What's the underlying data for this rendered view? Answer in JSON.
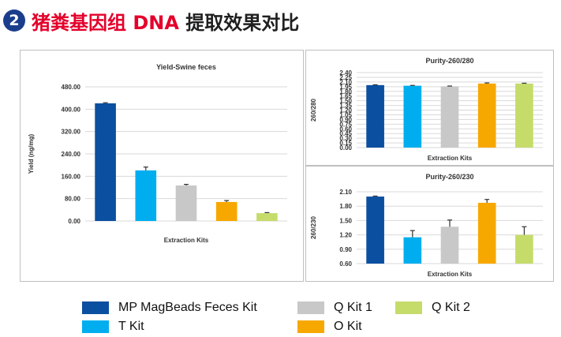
{
  "header": {
    "number": "2",
    "title_red": "猪粪基因组 DNA",
    "title_dark": "提取效果对比"
  },
  "colors": {
    "mp": "#0b4fa0",
    "t": "#00aeef",
    "q1": "#c8c8c8",
    "o": "#f7a800",
    "q2": "#c5dc6b",
    "err": "#333333"
  },
  "legend": [
    {
      "label": "MP MagBeads Feces  Kit",
      "color": "#0b4fa0"
    },
    {
      "label": "T Kit",
      "color": "#00aeef"
    },
    {
      "label": "Q Kit 1",
      "color": "#c8c8c8"
    },
    {
      "label": "O Kit",
      "color": "#f7a800"
    },
    {
      "label": "Q Kit 2",
      "color": "#c5dc6b"
    }
  ],
  "chart_data": [
    {
      "type": "bar",
      "title": "Yield-Swine feces",
      "xlabel": "Extraction Kits",
      "ylabel": "Yield (ng/mg)",
      "ylim": [
        0,
        480
      ],
      "yticks": [
        0,
        80,
        160,
        240,
        320,
        400,
        480
      ],
      "ytick_labels": [
        "0.00",
        "80.00",
        "160.00",
        "240.00",
        "320.00",
        "400.00",
        "480.00"
      ],
      "categories": [
        "MP MagBeads Feces Kit",
        "T Kit",
        "Q Kit 1",
        "O Kit",
        "Q Kit 2"
      ],
      "values": [
        421,
        181,
        127,
        68,
        28
      ],
      "errors": [
        2,
        12,
        4,
        5,
        2
      ]
    },
    {
      "type": "bar",
      "title": "Purity-260/280",
      "xlabel": "Extraction Kits",
      "ylabel": "260/280",
      "ylim": [
        0,
        2.4
      ],
      "yticks": [
        0,
        0.15,
        0.3,
        0.45,
        0.6,
        0.75,
        0.9,
        1.05,
        1.2,
        1.35,
        1.5,
        1.65,
        1.8,
        1.95,
        2.1,
        2.25,
        2.4
      ],
      "ytick_labels": [
        "0.00",
        "0.15",
        "0.30",
        "0.45",
        "0.60",
        "0.75",
        "0.90",
        "1.05",
        "1.20",
        "1.35",
        "1.50",
        "1.65",
        "1.80",
        "1.95",
        "2.10",
        "2.25",
        "2.40"
      ],
      "categories": [
        "MP MagBeads Feces Kit",
        "T Kit",
        "Q Kit 1",
        "O Kit",
        "Q Kit 2"
      ],
      "values": [
        2.0,
        1.98,
        1.96,
        2.05,
        2.05
      ],
      "errors": [
        0.01,
        0.01,
        0.01,
        0.02,
        0.01
      ]
    },
    {
      "type": "bar",
      "title": "Purity-260/230",
      "xlabel": "Extraction Kits",
      "ylabel": "260/230",
      "ylim": [
        0.6,
        2.1
      ],
      "yticks": [
        0.6,
        0.9,
        1.2,
        1.5,
        1.8,
        2.1
      ],
      "ytick_labels": [
        "0.60",
        "0.90",
        "1.20",
        "1.50",
        "1.80",
        "2.10"
      ],
      "categories": [
        "MP MagBeads Feces Kit",
        "T Kit",
        "Q Kit 1",
        "O Kit",
        "Q Kit 2"
      ],
      "values": [
        2.0,
        1.15,
        1.37,
        1.87,
        1.2
      ],
      "errors": [
        0.01,
        0.14,
        0.14,
        0.07,
        0.17
      ]
    }
  ]
}
